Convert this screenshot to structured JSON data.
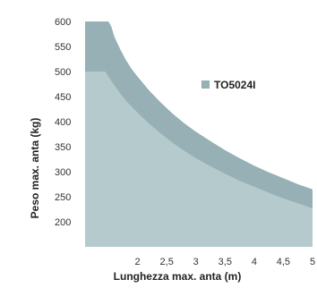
{
  "chart_data": {
    "type": "area",
    "xlabel": "Lunghezza max. anta (m)",
    "ylabel": "Peso max. anta (kg)",
    "xlim": [
      1.1,
      5.0
    ],
    "ylim": [
      150,
      600
    ],
    "x_ticks": [
      "2",
      "2,5",
      "3",
      "3,5",
      "4",
      "4,5",
      "5"
    ],
    "x_tick_values": [
      2,
      2.5,
      3,
      3.5,
      4,
      4.5,
      5
    ],
    "y_ticks": [
      "600",
      "550",
      "500",
      "450",
      "400",
      "350",
      "300",
      "250",
      "200"
    ],
    "y_tick_values": [
      600,
      550,
      500,
      450,
      400,
      350,
      300,
      250,
      200
    ],
    "legend": [
      {
        "name": "TO5024I",
        "color": "#96b0b5"
      }
    ],
    "series": [
      {
        "name": "TO5024I",
        "color": "#96b0b5",
        "x": [
          1.1,
          1.5,
          1.55,
          1.6,
          1.7,
          1.8,
          1.9,
          2.0,
          2.2,
          2.4,
          2.6,
          2.8,
          3.0,
          3.25,
          3.5,
          3.75,
          4.0,
          4.25,
          4.5,
          4.75,
          5.0
        ],
        "y": [
          600,
          600,
          590,
          570,
          545,
          523,
          505,
          490,
          462,
          438,
          416,
          397,
          380,
          361,
          343,
          327,
          312,
          299,
          287,
          275,
          265
        ]
      },
      {
        "name": "",
        "color": "#b4cacd",
        "x": [
          1.1,
          1.45,
          1.5,
          1.6,
          1.7,
          1.8,
          1.9,
          2.0,
          2.2,
          2.4,
          2.6,
          2.8,
          3.0,
          3.25,
          3.5,
          3.75,
          4.0,
          4.25,
          4.5,
          4.75,
          5.0
        ],
        "y": [
          500,
          500,
          490,
          473,
          457,
          442,
          430,
          418,
          396,
          376,
          358,
          342,
          327,
          311,
          296,
          282,
          270,
          258,
          247,
          237,
          227
        ]
      }
    ]
  }
}
